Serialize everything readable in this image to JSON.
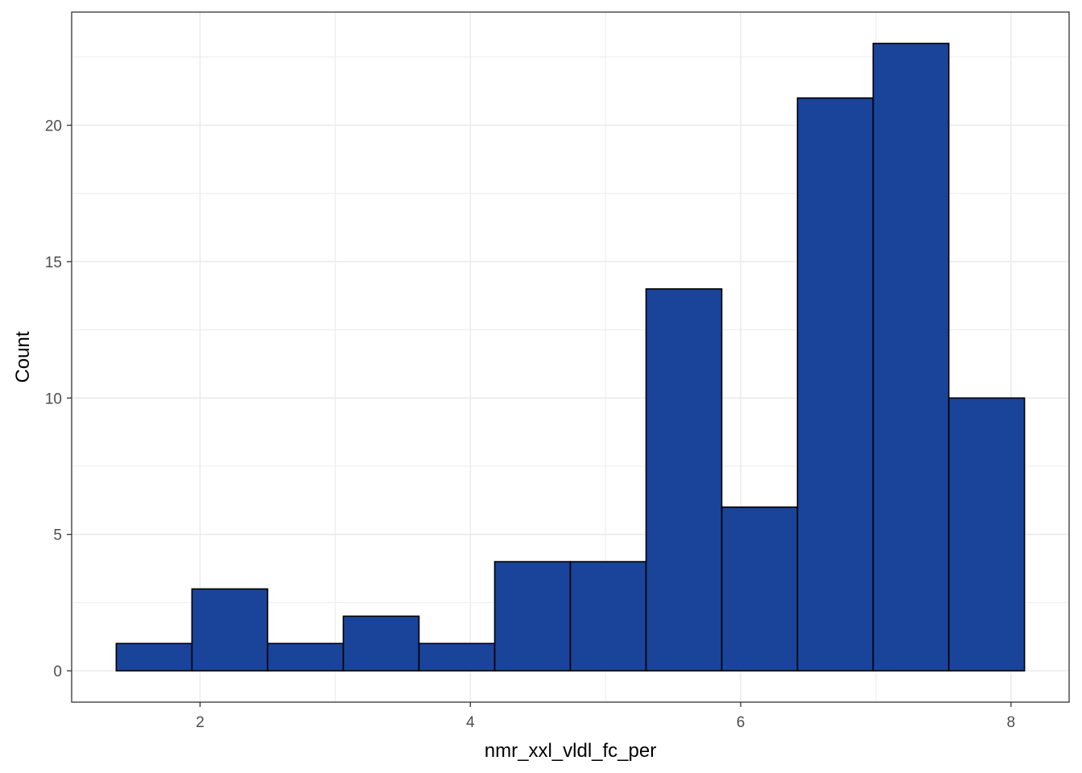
{
  "chart_data": {
    "type": "bar",
    "subtype": "histogram",
    "title": "",
    "xlabel": "nmr_xxl_vldl_fc_per",
    "ylabel": "Count",
    "bins": [
      {
        "x0": 1.38,
        "x1": 1.94,
        "count": 1
      },
      {
        "x0": 1.94,
        "x1": 2.5,
        "count": 3
      },
      {
        "x0": 2.5,
        "x1": 3.06,
        "count": 1
      },
      {
        "x0": 3.06,
        "x1": 3.62,
        "count": 2
      },
      {
        "x0": 3.62,
        "x1": 4.18,
        "count": 1
      },
      {
        "x0": 4.18,
        "x1": 4.74,
        "count": 4
      },
      {
        "x0": 4.74,
        "x1": 5.3,
        "count": 4
      },
      {
        "x0": 5.3,
        "x1": 5.86,
        "count": 14
      },
      {
        "x0": 5.86,
        "x1": 6.42,
        "count": 6
      },
      {
        "x0": 6.42,
        "x1": 6.98,
        "count": 21
      },
      {
        "x0": 6.98,
        "x1": 7.54,
        "count": 23
      },
      {
        "x0": 7.54,
        "x1": 8.1,
        "count": 10
      }
    ],
    "xlim": [
      1.05,
      8.43
    ],
    "ylim": [
      -1.15,
      24.15
    ],
    "x_ticks": [
      2,
      4,
      6,
      8
    ],
    "x_tick_labels": [
      "2",
      "4",
      "6",
      "8"
    ],
    "y_ticks": [
      0,
      5,
      10,
      15,
      20
    ],
    "y_tick_labels": [
      "0",
      "5",
      "10",
      "15",
      "20"
    ],
    "grid": true,
    "fill_color": "#1a4499",
    "outline_color": "#000000",
    "grid_color": "#ebebeb"
  }
}
